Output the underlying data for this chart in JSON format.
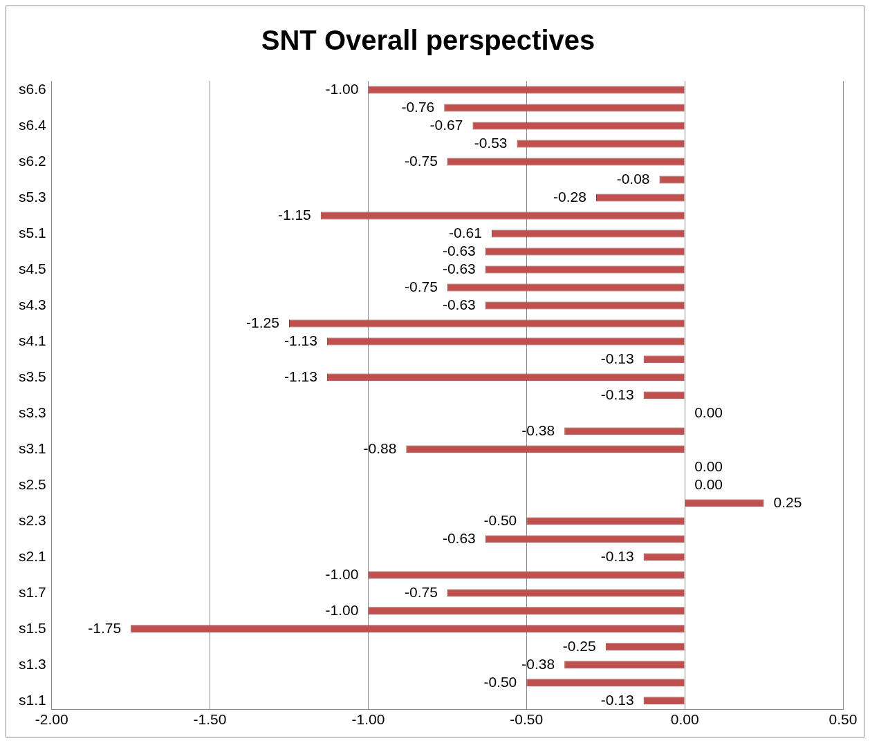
{
  "chart_data": {
    "type": "bar",
    "orientation": "horizontal",
    "title": "SNT Overall perspectives",
    "categories": [
      "s6.6",
      null,
      "s6.4",
      null,
      "s6.2",
      null,
      "s5.3",
      null,
      "s5.1",
      null,
      "s4.5",
      null,
      "s4.3",
      null,
      "s4.1",
      null,
      "s3.5",
      null,
      "s3.3",
      null,
      "s3.1",
      null,
      "s2.5",
      null,
      "s2.3",
      null,
      "s2.1",
      null,
      "s1.7",
      null,
      "s1.5",
      null,
      "s1.3",
      null,
      "s1.1"
    ],
    "values": [
      -1.0,
      -0.76,
      -0.67,
      -0.53,
      -0.75,
      -0.08,
      -0.28,
      -1.15,
      -0.61,
      -0.63,
      -0.63,
      -0.75,
      -0.63,
      -1.25,
      -1.13,
      -0.13,
      -1.13,
      -0.13,
      0.0,
      -0.38,
      -0.88,
      0.0,
      0.0,
      0.25,
      -0.5,
      -0.63,
      -0.13,
      -1.0,
      -0.75,
      -1.0,
      -1.75,
      -0.25,
      -0.38,
      -0.5,
      -0.13
    ],
    "color": "#c0504d",
    "xlim": [
      -2,
      0.5
    ],
    "xticks": [
      {
        "value": -2,
        "label": "-2.00"
      },
      {
        "value": -1.5,
        "label": "-1.50"
      },
      {
        "value": -1,
        "label": "-1.00"
      },
      {
        "value": -0.5,
        "label": "-0.50"
      },
      {
        "value": 0,
        "label": "0.00"
      },
      {
        "value": 0.5,
        "label": "0.50"
      }
    ],
    "grid": "x",
    "legend": false,
    "value_labels": [
      "-1.00",
      "-0.76",
      "-0.67",
      "-0.53",
      "-0.75",
      "-0.08",
      "-0.28",
      "-1.15",
      "-0.61",
      "-0.63",
      "-0.63",
      "-0.75",
      "-0.63",
      "-1.25",
      "-1.13",
      "-0.13",
      "-1.13",
      "-0.13",
      "0.00",
      "-0.38",
      "-0.88",
      "0.00",
      "0.00",
      "0.25",
      "-0.50",
      "-0.63",
      "-0.13",
      "-1.00",
      "-0.75",
      "-1.00",
      "-1.75",
      "-0.25",
      "-0.38",
      "-0.50",
      "-0.13"
    ]
  }
}
